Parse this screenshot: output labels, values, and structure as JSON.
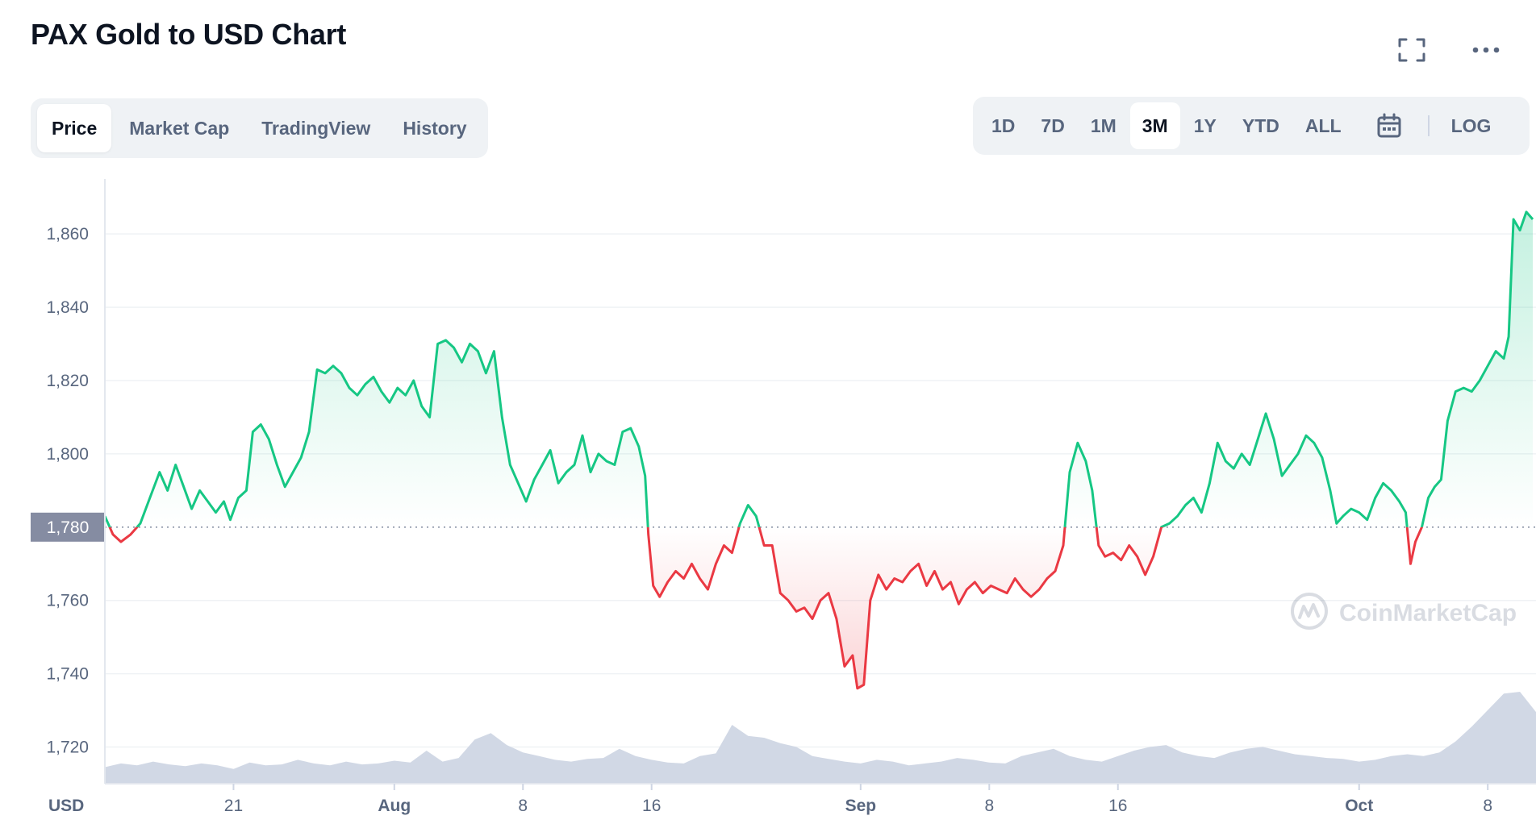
{
  "header": {
    "title": "PAX Gold to USD Chart",
    "fullscreen_icon": "fullscreen-icon",
    "more_icon": "more-dots-icon"
  },
  "tabs": [
    {
      "label": "Price",
      "active": true
    },
    {
      "label": "Market Cap",
      "active": false
    },
    {
      "label": "TradingView",
      "active": false
    },
    {
      "label": "History",
      "active": false
    }
  ],
  "ranges": {
    "items": [
      {
        "label": "1D",
        "active": false
      },
      {
        "label": "7D",
        "active": false
      },
      {
        "label": "1M",
        "active": false
      },
      {
        "label": "3M",
        "active": true
      },
      {
        "label": "1Y",
        "active": false
      },
      {
        "label": "YTD",
        "active": false
      },
      {
        "label": "ALL",
        "active": false
      }
    ],
    "calendar_icon": "calendar-icon",
    "log_label": "LOG"
  },
  "watermark": "CoinMarketCap",
  "colors": {
    "up": "#16c784",
    "down": "#ea3943",
    "volume": "#cfd6e4",
    "baseline_badge": "#858ca2",
    "text_muted": "#58667e"
  },
  "chart_data": {
    "type": "line",
    "currency_label": "USD",
    "baseline": 1780,
    "baseline_label": "1,780",
    "ylim": [
      1710,
      1875
    ],
    "y_ticks": [
      {
        "value": 1720,
        "label": "1,720"
      },
      {
        "value": 1740,
        "label": "1,740"
      },
      {
        "value": 1760,
        "label": "1,760"
      },
      {
        "value": 1800,
        "label": "1,800"
      },
      {
        "value": 1820,
        "label": "1,820"
      },
      {
        "value": 1840,
        "label": "1,840"
      },
      {
        "value": 1860,
        "label": "1,860"
      }
    ],
    "x_range_days": [
      0,
      89
    ],
    "x_ticks": [
      {
        "day": 8,
        "label": "21",
        "bold": false
      },
      {
        "day": 18,
        "label": "Aug",
        "bold": true
      },
      {
        "day": 26,
        "label": "8",
        "bold": false
      },
      {
        "day": 34,
        "label": "16",
        "bold": false
      },
      {
        "day": 47,
        "label": "Sep",
        "bold": true
      },
      {
        "day": 55,
        "label": "8",
        "bold": false
      },
      {
        "day": 63,
        "label": "16",
        "bold": false
      },
      {
        "day": 78,
        "label": "Oct",
        "bold": true
      },
      {
        "day": 86,
        "label": "8",
        "bold": false
      }
    ],
    "series": [
      {
        "points": [
          [
            0.0,
            1783
          ],
          [
            0.5,
            1778
          ],
          [
            1.0,
            1776
          ],
          [
            1.6,
            1778
          ],
          [
            2.2,
            1781
          ],
          [
            2.8,
            1788
          ],
          [
            3.4,
            1795
          ],
          [
            3.9,
            1790
          ],
          [
            4.4,
            1797
          ],
          [
            4.9,
            1791
          ],
          [
            5.4,
            1785
          ],
          [
            5.9,
            1790
          ],
          [
            6.4,
            1787
          ],
          [
            6.9,
            1784
          ],
          [
            7.4,
            1787
          ],
          [
            7.8,
            1782
          ],
          [
            8.3,
            1788
          ],
          [
            8.8,
            1790
          ],
          [
            9.2,
            1806
          ],
          [
            9.7,
            1808
          ],
          [
            10.2,
            1804
          ],
          [
            10.7,
            1797
          ],
          [
            11.2,
            1791
          ],
          [
            11.7,
            1795
          ],
          [
            12.2,
            1799
          ],
          [
            12.7,
            1806
          ],
          [
            13.2,
            1823
          ],
          [
            13.7,
            1822
          ],
          [
            14.2,
            1824
          ],
          [
            14.7,
            1822
          ],
          [
            15.2,
            1818
          ],
          [
            15.7,
            1816
          ],
          [
            16.2,
            1819
          ],
          [
            16.7,
            1821
          ],
          [
            17.2,
            1817
          ],
          [
            17.7,
            1814
          ],
          [
            18.2,
            1818
          ],
          [
            18.7,
            1816
          ],
          [
            19.2,
            1820
          ],
          [
            19.7,
            1813
          ],
          [
            20.2,
            1810
          ],
          [
            20.7,
            1830
          ],
          [
            21.2,
            1831
          ],
          [
            21.7,
            1829
          ],
          [
            22.2,
            1825
          ],
          [
            22.7,
            1830
          ],
          [
            23.2,
            1828
          ],
          [
            23.7,
            1822
          ],
          [
            24.2,
            1828
          ],
          [
            24.7,
            1810
          ],
          [
            25.2,
            1797
          ],
          [
            25.7,
            1792
          ],
          [
            26.2,
            1787
          ],
          [
            26.7,
            1793
          ],
          [
            27.2,
            1797
          ],
          [
            27.7,
            1801
          ],
          [
            28.2,
            1792
          ],
          [
            28.7,
            1795
          ],
          [
            29.2,
            1797
          ],
          [
            29.7,
            1805
          ],
          [
            30.2,
            1795
          ],
          [
            30.7,
            1800
          ],
          [
            31.2,
            1798
          ],
          [
            31.7,
            1797
          ],
          [
            32.2,
            1806
          ],
          [
            32.7,
            1807
          ],
          [
            33.2,
            1802
          ],
          [
            33.6,
            1794
          ],
          [
            33.8,
            1778
          ],
          [
            34.1,
            1764
          ],
          [
            34.5,
            1761
          ],
          [
            35.0,
            1765
          ],
          [
            35.5,
            1768
          ],
          [
            36.0,
            1766
          ],
          [
            36.5,
            1770
          ],
          [
            37.0,
            1766
          ],
          [
            37.5,
            1763
          ],
          [
            38.0,
            1770
          ],
          [
            38.5,
            1775
          ],
          [
            39.0,
            1773
          ],
          [
            39.5,
            1781
          ],
          [
            40.0,
            1786
          ],
          [
            40.5,
            1783
          ],
          [
            41.0,
            1775
          ],
          [
            41.5,
            1775
          ],
          [
            42.0,
            1762
          ],
          [
            42.5,
            1760
          ],
          [
            43.0,
            1757
          ],
          [
            43.5,
            1758
          ],
          [
            44.0,
            1755
          ],
          [
            44.5,
            1760
          ],
          [
            45.0,
            1762
          ],
          [
            45.5,
            1755
          ],
          [
            46.0,
            1742
          ],
          [
            46.5,
            1745
          ],
          [
            46.8,
            1736
          ],
          [
            47.2,
            1737
          ],
          [
            47.6,
            1760
          ],
          [
            48.1,
            1767
          ],
          [
            48.6,
            1763
          ],
          [
            49.1,
            1766
          ],
          [
            49.6,
            1765
          ],
          [
            50.1,
            1768
          ],
          [
            50.6,
            1770
          ],
          [
            51.1,
            1764
          ],
          [
            51.6,
            1768
          ],
          [
            52.1,
            1763
          ],
          [
            52.6,
            1765
          ],
          [
            53.1,
            1759
          ],
          [
            53.6,
            1763
          ],
          [
            54.1,
            1765
          ],
          [
            54.6,
            1762
          ],
          [
            55.1,
            1764
          ],
          [
            55.6,
            1763
          ],
          [
            56.1,
            1762
          ],
          [
            56.6,
            1766
          ],
          [
            57.1,
            1763
          ],
          [
            57.6,
            1761
          ],
          [
            58.1,
            1763
          ],
          [
            58.6,
            1766
          ],
          [
            59.1,
            1768
          ],
          [
            59.6,
            1775
          ],
          [
            60.0,
            1795
          ],
          [
            60.5,
            1803
          ],
          [
            61.0,
            1798
          ],
          [
            61.4,
            1790
          ],
          [
            61.8,
            1775
          ],
          [
            62.2,
            1772
          ],
          [
            62.7,
            1773
          ],
          [
            63.2,
            1771
          ],
          [
            63.7,
            1775
          ],
          [
            64.2,
            1772
          ],
          [
            64.7,
            1767
          ],
          [
            65.2,
            1772
          ],
          [
            65.7,
            1780
          ],
          [
            66.2,
            1781
          ],
          [
            66.7,
            1783
          ],
          [
            67.2,
            1786
          ],
          [
            67.7,
            1788
          ],
          [
            68.2,
            1784
          ],
          [
            68.7,
            1792
          ],
          [
            69.2,
            1803
          ],
          [
            69.7,
            1798
          ],
          [
            70.2,
            1796
          ],
          [
            70.7,
            1800
          ],
          [
            71.2,
            1797
          ],
          [
            71.7,
            1804
          ],
          [
            72.2,
            1811
          ],
          [
            72.7,
            1804
          ],
          [
            73.2,
            1794
          ],
          [
            73.7,
            1797
          ],
          [
            74.2,
            1800
          ],
          [
            74.7,
            1805
          ],
          [
            75.2,
            1803
          ],
          [
            75.7,
            1799
          ],
          [
            76.2,
            1790
          ],
          [
            76.6,
            1781
          ],
          [
            77.0,
            1783
          ],
          [
            77.5,
            1785
          ],
          [
            78.0,
            1784
          ],
          [
            78.5,
            1782
          ],
          [
            79.0,
            1788
          ],
          [
            79.5,
            1792
          ],
          [
            80.0,
            1790
          ],
          [
            80.5,
            1787
          ],
          [
            80.9,
            1784
          ],
          [
            81.2,
            1770
          ],
          [
            81.5,
            1776
          ],
          [
            81.9,
            1780
          ],
          [
            82.3,
            1788
          ],
          [
            82.7,
            1791
          ],
          [
            83.1,
            1793
          ],
          [
            83.5,
            1809
          ],
          [
            84.0,
            1817
          ],
          [
            84.5,
            1818
          ],
          [
            85.0,
            1817
          ],
          [
            85.5,
            1820
          ],
          [
            86.0,
            1824
          ],
          [
            86.5,
            1828
          ],
          [
            87.0,
            1826
          ],
          [
            87.3,
            1832
          ],
          [
            87.6,
            1864
          ],
          [
            88.0,
            1861
          ],
          [
            88.4,
            1866
          ],
          [
            88.8,
            1864
          ]
        ]
      }
    ],
    "volume_relative": [
      0.18,
      0.22,
      0.2,
      0.24,
      0.21,
      0.19,
      0.22,
      0.2,
      0.16,
      0.23,
      0.2,
      0.21,
      0.26,
      0.22,
      0.2,
      0.24,
      0.21,
      0.22,
      0.25,
      0.23,
      0.36,
      0.24,
      0.28,
      0.48,
      0.55,
      0.42,
      0.34,
      0.3,
      0.26,
      0.24,
      0.27,
      0.28,
      0.38,
      0.3,
      0.26,
      0.23,
      0.22,
      0.3,
      0.33,
      0.64,
      0.52,
      0.5,
      0.44,
      0.4,
      0.3,
      0.27,
      0.24,
      0.22,
      0.26,
      0.24,
      0.2,
      0.22,
      0.24,
      0.28,
      0.26,
      0.23,
      0.22,
      0.3,
      0.34,
      0.38,
      0.3,
      0.26,
      0.24,
      0.3,
      0.36,
      0.4,
      0.42,
      0.34,
      0.3,
      0.28,
      0.34,
      0.38,
      0.4,
      0.36,
      0.32,
      0.3,
      0.28,
      0.27,
      0.24,
      0.26,
      0.3,
      0.32,
      0.3,
      0.34,
      0.46,
      0.62,
      0.8,
      0.98,
      1.0,
      0.78
    ]
  }
}
